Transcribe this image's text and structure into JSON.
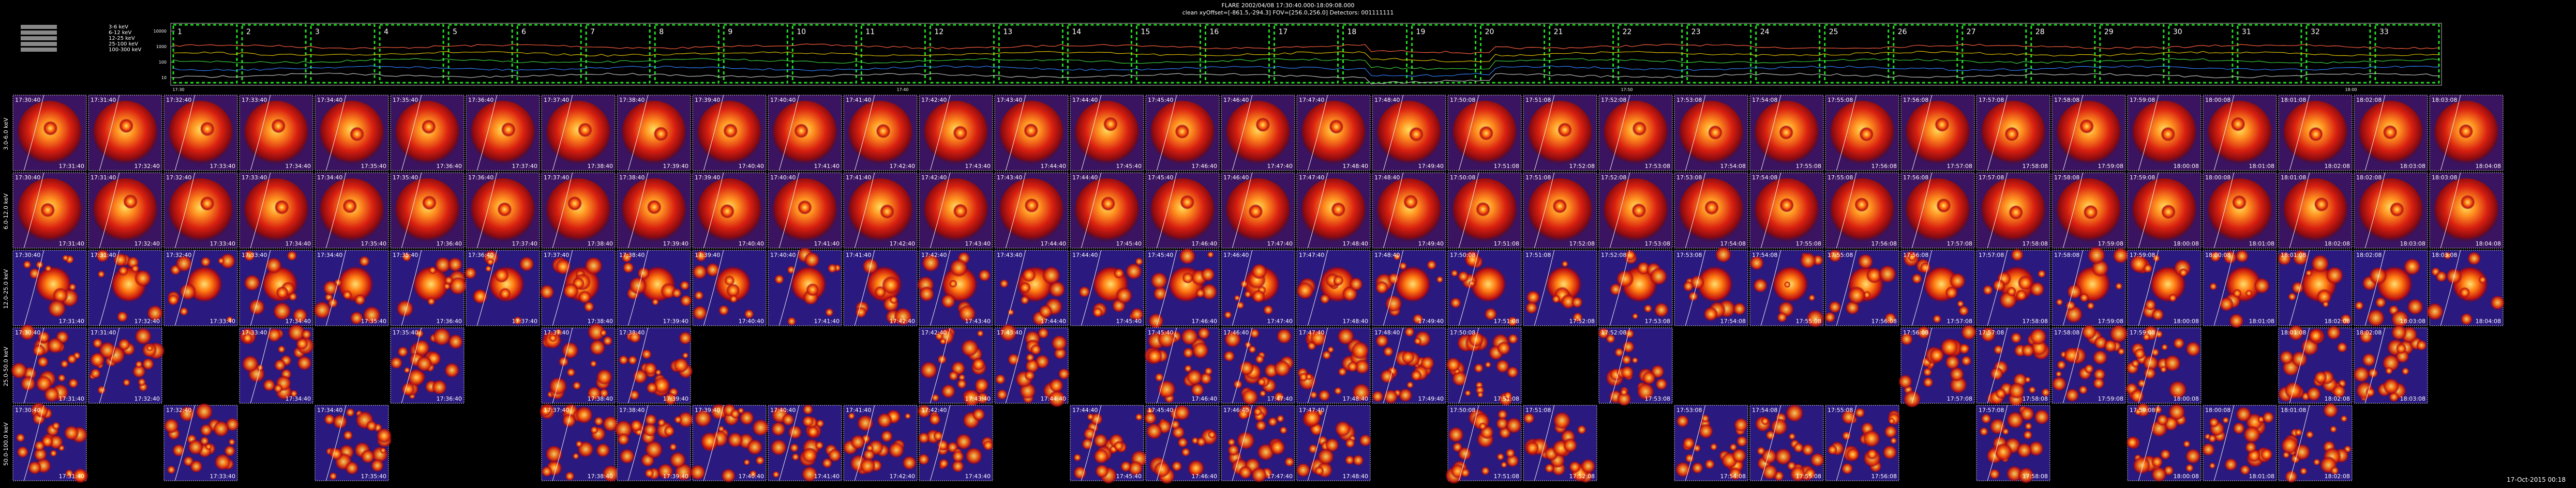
{
  "header": {
    "title": "FLARE  2002/04/08 17:30:40.000-18:09:08.000",
    "subtitle": "clean    xyOffset=[-861.5,-294.3]    FOV=[256.0,256.0]    Detectors: 001111111"
  },
  "lightcurve": {
    "legend": [
      "3-6 keV",
      "6-12 keV",
      "12-25 keV",
      "25-100 keV",
      "100-300 keV"
    ],
    "legend_colors": [
      "#ff6040",
      "#e0c000",
      "#40d040",
      "#3080ff",
      "#c0c0c0"
    ],
    "yticks": [
      "10000",
      "1000",
      "100",
      "10"
    ],
    "xticks": [
      "17:30",
      "17:40",
      "17:50",
      "18:00"
    ],
    "intervals": [
      "1",
      "2",
      "3",
      "4",
      "5",
      "6",
      "7",
      "8",
      "9",
      "10",
      "11",
      "12",
      "13",
      "14",
      "15",
      "16",
      "17",
      "18",
      "19",
      "20",
      "21",
      "22",
      "23",
      "24",
      "25",
      "26",
      "27",
      "28",
      "29",
      "30",
      "31",
      "32",
      "33"
    ]
  },
  "rows": [
    "3.0-6.0 keV",
    "6.0-12.0 keV",
    "12.0-25.0 keV",
    "25.0-50.0 keV",
    "50.0-100.0 keV"
  ],
  "columns": [
    {
      "start": "17:30:40",
      "end": "17:31:40"
    },
    {
      "start": "17:31:40",
      "end": "17:32:40"
    },
    {
      "start": "17:32:40",
      "end": "17:33:40"
    },
    {
      "start": "17:33:40",
      "end": "17:34:40"
    },
    {
      "start": "17:34:40",
      "end": "17:35:40"
    },
    {
      "start": "17:35:40",
      "end": "17:36:40"
    },
    {
      "start": "17:36:40",
      "end": "17:37:40"
    },
    {
      "start": "17:37:40",
      "end": "17:38:40"
    },
    {
      "start": "17:38:40",
      "end": "17:39:40"
    },
    {
      "start": "17:39:40",
      "end": "17:40:40"
    },
    {
      "start": "17:40:40",
      "end": "17:41:40"
    },
    {
      "start": "17:41:40",
      "end": "17:42:40"
    },
    {
      "start": "17:42:40",
      "end": "17:43:40"
    },
    {
      "start": "17:43:40",
      "end": "17:44:40"
    },
    {
      "start": "17:44:40",
      "end": "17:45:40"
    },
    {
      "start": "17:45:40",
      "end": "17:46:40"
    },
    {
      "start": "17:46:40",
      "end": "17:47:40"
    },
    {
      "start": "17:47:40",
      "end": "17:48:40"
    },
    {
      "start": "17:48:40",
      "end": "17:49:40"
    },
    {
      "start": "17:50:08",
      "end": "17:51:08"
    },
    {
      "start": "17:51:08",
      "end": "17:52:08"
    },
    {
      "start": "17:52:08",
      "end": "17:53:08"
    },
    {
      "start": "17:53:08",
      "end": "17:54:08"
    },
    {
      "start": "17:54:08",
      "end": "17:55:08"
    },
    {
      "start": "17:55:08",
      "end": "17:56:08"
    },
    {
      "start": "17:56:08",
      "end": "17:57:08"
    },
    {
      "start": "17:57:08",
      "end": "17:58:08"
    },
    {
      "start": "17:58:08",
      "end": "17:59:08"
    },
    {
      "start": "17:59:08",
      "end": "18:00:08"
    },
    {
      "start": "18:00:08",
      "end": "18:01:08"
    },
    {
      "start": "18:01:08",
      "end": "18:02:08"
    },
    {
      "start": "18:02:08",
      "end": "18:03:08"
    },
    {
      "start": "18:03:08",
      "end": "18:04:08"
    }
  ],
  "footer": {
    "timestamp": "17-Oct-2015 00:18"
  }
}
